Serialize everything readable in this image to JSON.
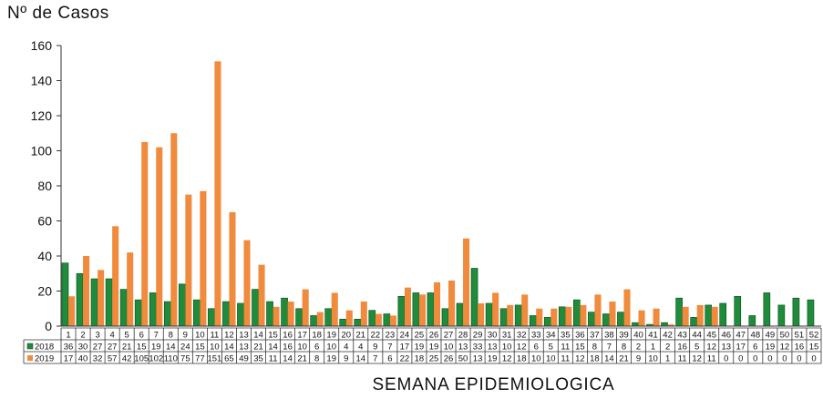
{
  "chart_data": {
    "type": "bar",
    "title": "",
    "ylabel": "Nº de Casos",
    "xlabel": "SEMANA EPIDEMIOLOGICA",
    "ylim": [
      0,
      160
    ],
    "yticks": [
      0,
      20,
      40,
      60,
      80,
      100,
      120,
      140,
      160
    ],
    "grid": false,
    "legend": "data-table",
    "categories": [
      "1",
      "2",
      "3",
      "4",
      "5",
      "6",
      "7",
      "8",
      "9",
      "10",
      "11",
      "12",
      "13",
      "14",
      "15",
      "16",
      "17",
      "18",
      "19",
      "20",
      "21",
      "22",
      "23",
      "24",
      "25",
      "26",
      "27",
      "28",
      "29",
      "30",
      "31",
      "32",
      "33",
      "34",
      "35",
      "36",
      "37",
      "38",
      "39",
      "40",
      "41",
      "42",
      "43",
      "44",
      "45",
      "46",
      "47",
      "48",
      "49",
      "50",
      "51",
      "52"
    ],
    "series": [
      {
        "name": "2018",
        "color": "#1e8c3a",
        "values": [
          36,
          30,
          27,
          27,
          21,
          15,
          19,
          14,
          24,
          15,
          10,
          14,
          13,
          21,
          14,
          16,
          10,
          6,
          10,
          4,
          4,
          9,
          7,
          17,
          19,
          19,
          10,
          13,
          33,
          13,
          10,
          12,
          6,
          5,
          11,
          15,
          8,
          7,
          8,
          2,
          1,
          2,
          16,
          5,
          12,
          13,
          17,
          6,
          19,
          12,
          16,
          15
        ]
      },
      {
        "name": "2019",
        "color": "#f08a3c",
        "values": [
          17,
          40,
          32,
          57,
          42,
          105,
          102,
          110,
          75,
          77,
          151,
          65,
          49,
          35,
          11,
          14,
          21,
          8,
          19,
          9,
          14,
          7,
          6,
          22,
          18,
          25,
          26,
          50,
          13,
          19,
          12,
          18,
          10,
          10,
          11,
          12,
          18,
          14,
          21,
          9,
          10,
          1,
          11,
          12,
          11,
          0,
          0,
          0,
          0,
          0,
          0,
          0
        ]
      }
    ]
  }
}
